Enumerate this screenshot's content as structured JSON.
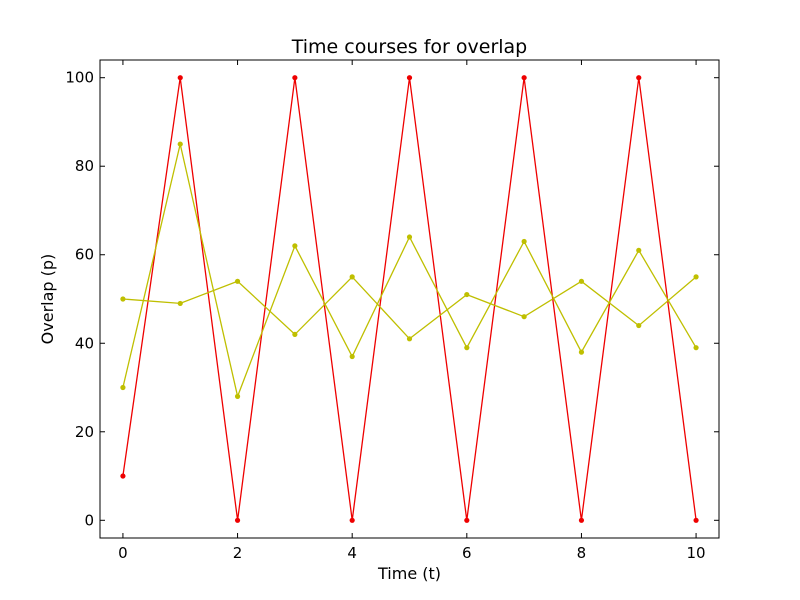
{
  "chart_data": {
    "type": "line",
    "title": "Time courses for overlap",
    "xlabel": "Time (t)",
    "ylabel": "Overlap (p)",
    "xlim": [
      -0.4,
      10.4
    ],
    "ylim": [
      -4,
      104
    ],
    "xticks": [
      0,
      2,
      4,
      6,
      8,
      10
    ],
    "yticks": [
      0,
      20,
      40,
      60,
      80,
      100
    ],
    "grid": false,
    "x": [
      0,
      1,
      2,
      3,
      4,
      5,
      6,
      7,
      8,
      9,
      10
    ],
    "series": [
      {
        "color": "#ee0000",
        "values": [
          10,
          100,
          0,
          100,
          0,
          100,
          0,
          100,
          0,
          100,
          0
        ]
      },
      {
        "color": "#bfbf00",
        "values": [
          30,
          85,
          28,
          62,
          37,
          64,
          39,
          63,
          38,
          61,
          39
        ]
      },
      {
        "color": "#bfbf00",
        "values": [
          50,
          49,
          54,
          42,
          55,
          41,
          51,
          46,
          54,
          44,
          55
        ]
      }
    ]
  }
}
